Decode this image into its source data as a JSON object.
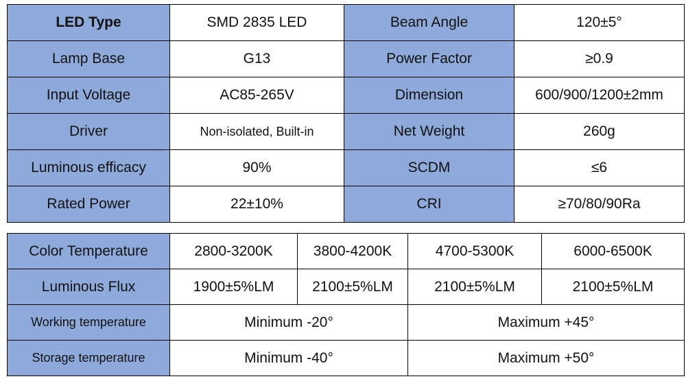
{
  "spec_table": {
    "rows": [
      {
        "label1": "LED Type",
        "value1": "SMD 2835 LED",
        "label2": "Beam Angle",
        "value2": "120±5°"
      },
      {
        "label1": "Lamp Base",
        "value1": "G13",
        "label2": "Power Factor",
        "value2": "≥0.9"
      },
      {
        "label1": "Input Voltage",
        "value1": "AC85-265V",
        "label2": "Dimension",
        "value2": "600/900/1200±2mm"
      },
      {
        "label1": "Driver",
        "value1": "Non-isolated, Built-in",
        "label2": "Net Weight",
        "value2": "260g"
      },
      {
        "label1": "Luminous efficacy",
        "value1": "90%",
        "label2": "SCDM",
        "value2": "≤6"
      },
      {
        "label1": "Rated Power",
        "value1": "22±10%",
        "label2": "CRI",
        "value2": "≥70/80/90Ra"
      }
    ]
  },
  "temp_table": {
    "color_temperature": {
      "label": "Color Temperature",
      "values": [
        "2800-3200K",
        "3800-4200K",
        "4700-5300K",
        "6000-6500K"
      ]
    },
    "luminous_flux": {
      "label": "Luminous Flux",
      "values": [
        "1900±5%LM",
        "2100±5%LM",
        "2100±5%LM",
        "2100±5%LM"
      ]
    },
    "working_temperature": {
      "label": "Working temperature",
      "min": "Minimum -20°",
      "max": "Maximum +45°"
    },
    "storage_temperature": {
      "label": "Storage temperature",
      "min": "Minimum -40°",
      "max": "Maximum +50°"
    }
  },
  "colors": {
    "header_fill": "#8eaadb",
    "value_fill": "#ffffff",
    "border": "#000000"
  }
}
